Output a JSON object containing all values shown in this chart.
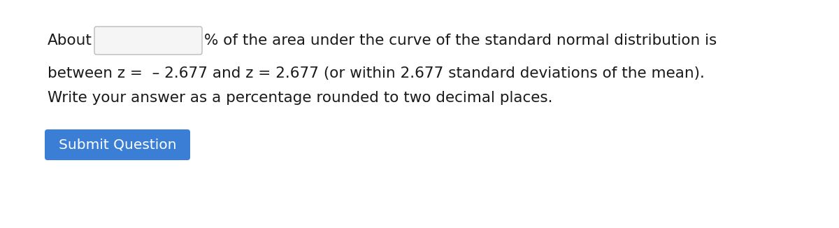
{
  "bg_color": "#ffffff",
  "text_color": "#1a1a1a",
  "line1_about": "About",
  "line1_percent": "% of the area under the curve of the standard normal distribution is",
  "line2": "between z =  – 2.677 and z = 2.677 (or within 2.677 standard deviations of the mean).",
  "line3": "Write your answer as a percentage rounded to two decimal places.",
  "button_text": "Submit Question",
  "button_color": "#3a7fd5",
  "button_text_color": "#ffffff",
  "input_box_color": "#f5f5f5",
  "input_box_border": "#bbbbbb",
  "font_size": 15.5,
  "button_font_size": 14.5,
  "fig_width": 12.0,
  "fig_height": 3.26,
  "dpi": 100
}
